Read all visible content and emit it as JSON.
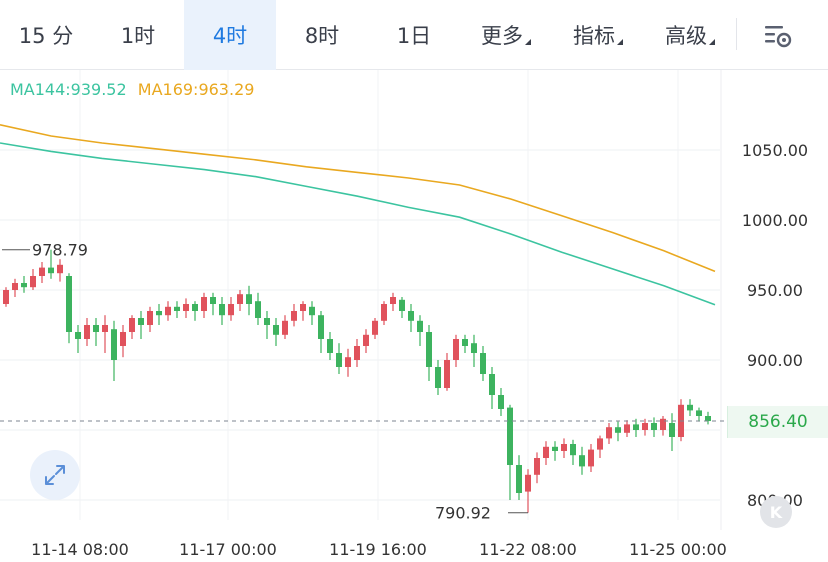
{
  "tabs": [
    {
      "label": "15 分",
      "active": false,
      "dropdown": false
    },
    {
      "label": "1时",
      "active": false,
      "dropdown": false
    },
    {
      "label": "4时",
      "active": true,
      "dropdown": false
    },
    {
      "label": "8时",
      "active": false,
      "dropdown": false
    },
    {
      "label": "1日",
      "active": false,
      "dropdown": false
    },
    {
      "label": "更多",
      "active": false,
      "dropdown": true
    },
    {
      "label": "指标",
      "active": false,
      "dropdown": true
    },
    {
      "label": "高级",
      "active": false,
      "dropdown": true
    }
  ],
  "settings_icon": "chart-settings-icon",
  "expand_icon": "expand-arrows-icon",
  "logo_text": "K",
  "legend": {
    "ma144": {
      "label": "MA144:939.52",
      "color": "#3cc4a0"
    },
    "ma169": {
      "label": "MA169:963.29",
      "color": "#e9a820"
    }
  },
  "colors": {
    "up": "#e0525c",
    "down": "#3db35f",
    "accent": "#1f7ae0",
    "price_tag_text": "#2aa84a"
  },
  "current_price": "856.40",
  "chart_data": {
    "type": "candlestick",
    "ylim": [
      780,
      1080
    ],
    "y_ticks": [
      "1050.00",
      "1000.00",
      "950.00",
      "900.00",
      "800.00"
    ],
    "x_ticks": [
      "11-14 08:00",
      "11-17 00:00",
      "11-19 16:00",
      "11-22 08:00",
      "11-25 00:00"
    ],
    "annotations": {
      "high": "978.79",
      "low": "790.92"
    },
    "current_price": 856.4,
    "ma144_line": [
      1055,
      1049,
      1044,
      1040,
      1036,
      1031,
      1024,
      1017,
      1009,
      1002,
      990,
      977,
      965,
      953,
      939.52
    ],
    "ma169_line": [
      1068,
      1060,
      1055,
      1051,
      1047,
      1043,
      1038,
      1034,
      1030,
      1025,
      1015,
      1003,
      991,
      978,
      963.29
    ],
    "candles": [
      [
        940,
        950,
        938,
        952
      ],
      [
        950,
        955,
        945,
        958
      ],
      [
        955,
        952,
        948,
        960
      ],
      [
        952,
        960,
        950,
        965
      ],
      [
        960,
        966,
        955,
        970
      ],
      [
        966,
        962,
        958,
        978.79
      ],
      [
        962,
        968,
        956,
        972
      ],
      [
        960,
        920,
        912,
        962
      ],
      [
        920,
        915,
        905,
        925
      ],
      [
        915,
        925,
        910,
        930
      ],
      [
        925,
        920,
        910,
        930
      ],
      [
        920,
        925,
        905,
        932
      ],
      [
        922,
        900,
        885,
        928
      ],
      [
        910,
        920,
        902,
        925
      ],
      [
        920,
        930,
        915,
        932
      ],
      [
        930,
        925,
        915,
        935
      ],
      [
        925,
        935,
        920,
        938
      ],
      [
        935,
        932,
        925,
        940
      ],
      [
        932,
        938,
        928,
        942
      ],
      [
        938,
        935,
        930,
        942
      ],
      [
        935,
        940,
        930,
        944
      ],
      [
        940,
        935,
        928,
        942
      ],
      [
        935,
        945,
        930,
        948
      ],
      [
        945,
        940,
        932,
        948
      ],
      [
        940,
        932,
        925,
        945
      ],
      [
        932,
        940,
        928,
        945
      ],
      [
        940,
        947,
        935,
        950
      ],
      [
        947,
        940,
        932,
        953
      ],
      [
        942,
        930,
        925,
        948
      ],
      [
        930,
        925,
        915,
        935
      ],
      [
        925,
        918,
        910,
        930
      ],
      [
        918,
        928,
        915,
        932
      ],
      [
        928,
        935,
        924,
        940
      ],
      [
        935,
        940,
        928,
        942
      ],
      [
        938,
        932,
        925,
        942
      ],
      [
        932,
        915,
        905,
        935
      ],
      [
        915,
        905,
        900,
        920
      ],
      [
        905,
        895,
        890,
        912
      ],
      [
        895,
        902,
        888,
        908
      ],
      [
        900,
        910,
        895,
        915
      ],
      [
        910,
        918,
        905,
        922
      ],
      [
        918,
        928,
        915,
        930
      ],
      [
        928,
        940,
        925,
        942
      ],
      [
        940,
        945,
        935,
        948
      ],
      [
        943,
        935,
        930,
        945
      ],
      [
        935,
        928,
        920,
        940
      ],
      [
        928,
        920,
        910,
        932
      ],
      [
        920,
        895,
        885,
        925
      ],
      [
        895,
        880,
        875,
        900
      ],
      [
        880,
        900,
        878,
        905
      ],
      [
        900,
        915,
        895,
        918
      ],
      [
        915,
        910,
        905,
        918
      ],
      [
        912,
        905,
        895,
        918
      ],
      [
        905,
        890,
        885,
        910
      ],
      [
        890,
        875,
        865,
        895
      ],
      [
        875,
        865,
        860,
        880
      ],
      [
        866,
        825,
        800,
        868
      ],
      [
        825,
        805,
        800,
        832
      ],
      [
        806,
        818,
        790.92,
        822
      ],
      [
        818,
        830,
        812,
        834
      ],
      [
        830,
        838,
        825,
        842
      ],
      [
        838,
        835,
        828,
        842
      ],
      [
        835,
        840,
        830,
        844
      ],
      [
        840,
        832,
        825,
        843
      ],
      [
        832,
        824,
        818,
        838
      ],
      [
        824,
        836,
        820,
        840
      ],
      [
        836,
        844,
        830,
        846
      ],
      [
        844,
        852,
        840,
        855
      ],
      [
        852,
        848,
        842,
        856
      ],
      [
        848,
        854,
        845,
        857
      ],
      [
        854,
        850,
        845,
        858
      ],
      [
        850,
        855,
        846,
        858
      ],
      [
        855,
        850,
        845,
        859
      ],
      [
        850,
        858,
        846,
        860
      ],
      [
        855,
        845,
        835,
        862
      ],
      [
        845,
        868,
        842,
        872
      ],
      [
        868,
        864,
        860,
        872
      ],
      [
        864,
        860,
        856,
        866
      ],
      [
        860,
        856.4,
        854,
        863
      ]
    ]
  }
}
